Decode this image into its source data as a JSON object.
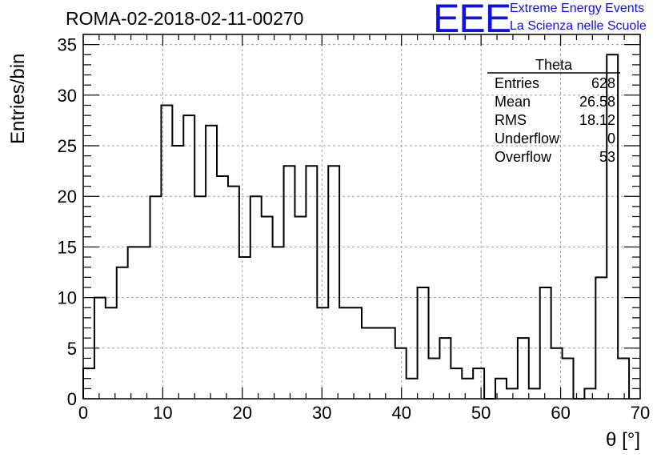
{
  "header": {
    "title": "ROMA-02-2018-02-11-00270",
    "logo_text": "EEE",
    "logo_line1": "Extreme Energy Events",
    "logo_line2": "La Scienza nelle Scuole"
  },
  "colors": {
    "logo": "#1010ee",
    "axis": "#000000",
    "grid": "#a0a0a0",
    "histogram": "#000000"
  },
  "stats_box": {
    "name": "Theta",
    "rows": [
      {
        "label": "Entries",
        "value": "628"
      },
      {
        "label": "Mean",
        "value": "26.58"
      },
      {
        "label": "RMS",
        "value": "18.12"
      },
      {
        "label": "Underflow",
        "value": "0"
      },
      {
        "label": "Overflow",
        "value": "53"
      }
    ]
  },
  "chart_data": {
    "type": "bar",
    "histogram": true,
    "xlabel": "θ [°]",
    "ylabel": "Entries/bin",
    "xlim": [
      0,
      70
    ],
    "ylim": [
      0,
      36
    ],
    "grid": true,
    "bin_width": 1.4,
    "x_ticks": [
      0,
      10,
      20,
      30,
      40,
      50,
      60,
      70
    ],
    "x_tick_labels": [
      "0",
      "10",
      "20",
      "30",
      "40",
      "50",
      "60",
      "70"
    ],
    "y_ticks": [
      0,
      5,
      10,
      15,
      20,
      25,
      30,
      35
    ],
    "y_tick_labels": [
      "0",
      "5",
      "10",
      "15",
      "20",
      "25",
      "30",
      "35"
    ],
    "values": [
      3,
      10,
      9,
      13,
      15,
      15,
      20,
      29,
      25,
      28,
      20,
      27,
      22,
      21,
      14,
      20,
      18,
      15,
      23,
      18,
      23,
      9,
      23,
      9,
      9,
      7,
      7,
      7,
      5,
      2,
      11,
      4,
      6,
      3,
      2,
      3,
      0,
      2,
      1,
      6,
      1,
      11,
      5,
      4,
      0,
      1,
      12,
      34,
      4
    ]
  }
}
